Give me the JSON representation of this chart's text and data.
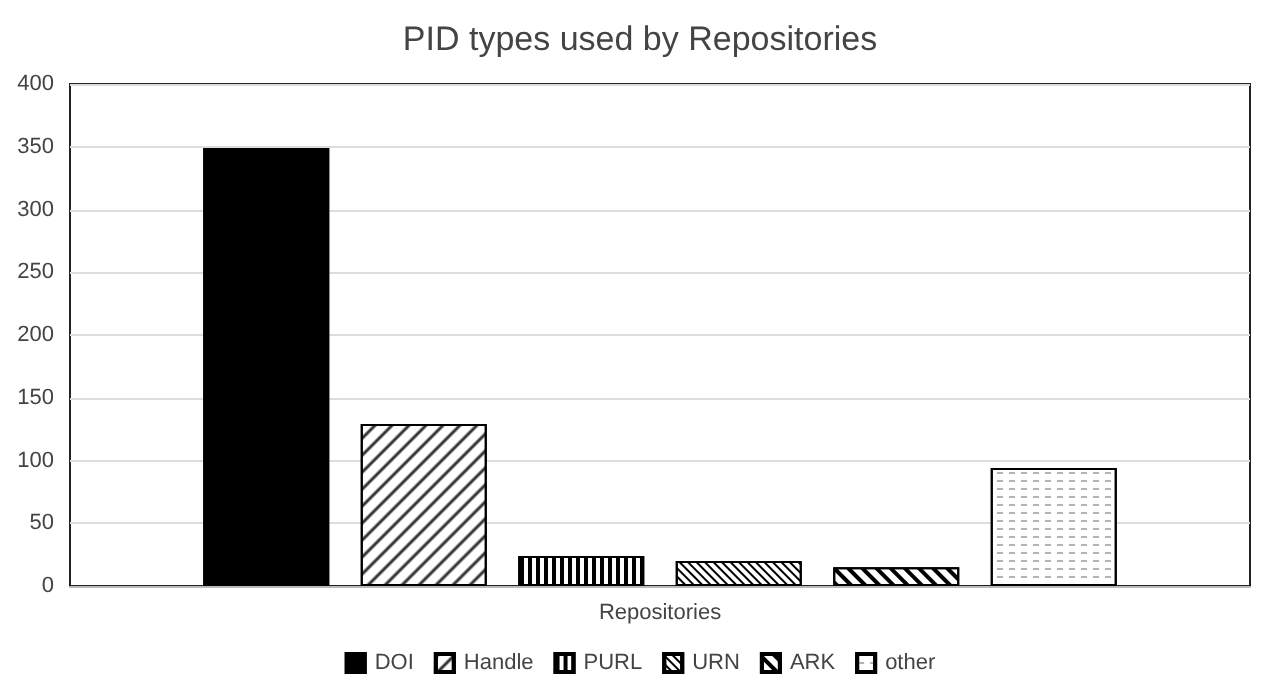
{
  "chart_data": {
    "type": "bar",
    "title": "PID types used by Repositories",
    "categories": [
      "Repositories"
    ],
    "series": [
      {
        "name": "DOI",
        "color": "#000000",
        "values": [
          349
        ]
      },
      {
        "name": "Handle",
        "color": "#ffffff",
        "values": [
          129
        ]
      },
      {
        "name": "PURL",
        "color": "#ffffff",
        "values": [
          24
        ]
      },
      {
        "name": "URN",
        "color": "#ffffff",
        "values": [
          20
        ]
      },
      {
        "name": "ARK",
        "color": "#ffffff",
        "values": [
          15
        ]
      },
      {
        "name": "other",
        "color": "#ffffff",
        "values": [
          94
        ]
      }
    ],
    "ylim": [
      0,
      400
    ],
    "yticks": [
      0,
      50,
      100,
      150,
      200,
      250,
      300,
      350,
      400
    ],
    "grid": "y",
    "legend": "bottom"
  }
}
